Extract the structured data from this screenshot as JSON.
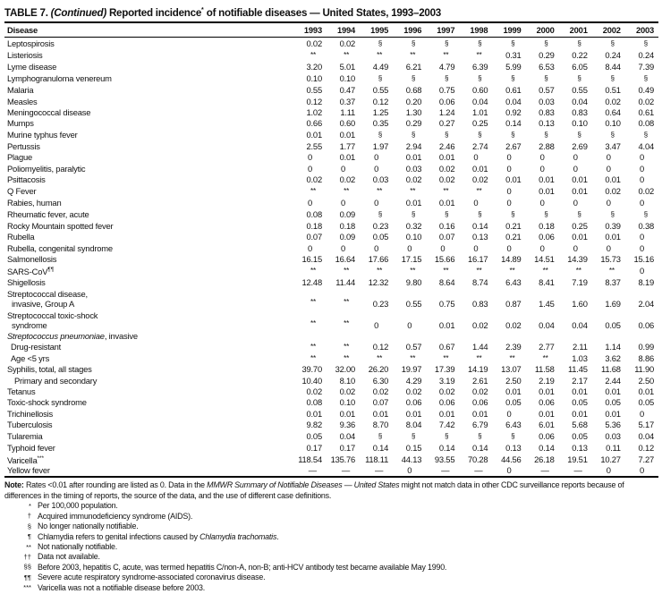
{
  "title": {
    "label": "TABLE 7.",
    "continued": "(Continued)",
    "text": "Reported incidence",
    "sup": "*",
    "text2": "of notifiable diseases — United States, 1993–2003"
  },
  "table": {
    "disease_header": "Disease",
    "years": [
      "1993",
      "1994",
      "1995",
      "1996",
      "1997",
      "1998",
      "1999",
      "2000",
      "2001",
      "2002",
      "2003"
    ],
    "rows": [
      {
        "label": "Leptospirosis",
        "values": [
          "0.02",
          "0.02",
          "§",
          "§",
          "§",
          "§",
          "§",
          "§",
          "§",
          "§",
          "§"
        ]
      },
      {
        "label": "Listeriosis",
        "values": [
          "**",
          "**",
          "**",
          "**",
          "**",
          "**",
          "0.31",
          "0.29",
          "0.22",
          "0.24",
          "0.24"
        ]
      },
      {
        "label": "Lyme disease",
        "values": [
          "3.20",
          "5.01",
          "4.49",
          "6.21",
          "4.79",
          "6.39",
          "5.99",
          "6.53",
          "6.05",
          "8.44",
          "7.39"
        ]
      },
      {
        "label": "Lymphogranuloma venereum",
        "values": [
          "0.10",
          "0.10",
          "§",
          "§",
          "§",
          "§",
          "§",
          "§",
          "§",
          "§",
          "§"
        ]
      },
      {
        "label": "Malaria",
        "values": [
          "0.55",
          "0.47",
          "0.55",
          "0.68",
          "0.75",
          "0.60",
          "0.61",
          "0.57",
          "0.55",
          "0.51",
          "0.49"
        ]
      },
      {
        "label": "Measles",
        "values": [
          "0.12",
          "0.37",
          "0.12",
          "0.20",
          "0.06",
          "0.04",
          "0.04",
          "0.03",
          "0.04",
          "0.02",
          "0.02"
        ]
      },
      {
        "label": "Meningococcal disease",
        "values": [
          "1.02",
          "1.11",
          "1.25",
          "1.30",
          "1.24",
          "1.01",
          "0.92",
          "0.83",
          "0.83",
          "0.64",
          "0.61"
        ]
      },
      {
        "label": "Mumps",
        "values": [
          "0.66",
          "0.60",
          "0.35",
          "0.29",
          "0.27",
          "0.25",
          "0.14",
          "0.13",
          "0.10",
          "0.10",
          "0.08"
        ]
      },
      {
        "label": "Murine typhus fever",
        "values": [
          "0.01",
          "0.01",
          "§",
          "§",
          "§",
          "§",
          "§",
          "§",
          "§",
          "§",
          "§"
        ]
      },
      {
        "label": "Pertussis",
        "values": [
          "2.55",
          "1.77",
          "1.97",
          "2.94",
          "2.46",
          "2.74",
          "2.67",
          "2.88",
          "2.69",
          "3.47",
          "4.04"
        ]
      },
      {
        "label": "Plague",
        "values": [
          "0",
          "0.01",
          "0",
          "0.01",
          "0.01",
          "0",
          "0",
          "0",
          "0",
          "0",
          "0"
        ]
      },
      {
        "label": "Poliomyelitis, paralytic",
        "values": [
          "0",
          "0",
          "0",
          "0.03",
          "0.02",
          "0.01",
          "0",
          "0",
          "0",
          "0",
          "0"
        ]
      },
      {
        "label": "Psittacosis",
        "values": [
          "0.02",
          "0.02",
          "0.03",
          "0.02",
          "0.02",
          "0.02",
          "0.01",
          "0.01",
          "0.01",
          "0.01",
          "0"
        ]
      },
      {
        "label": "Q Fever",
        "values": [
          "**",
          "**",
          "**",
          "**",
          "**",
          "**",
          "0",
          "0.01",
          "0.01",
          "0.02",
          "0.02"
        ]
      },
      {
        "label": "Rabies, human",
        "values": [
          "0",
          "0",
          "0",
          "0.01",
          "0.01",
          "0",
          "0",
          "0",
          "0",
          "0",
          "0"
        ]
      },
      {
        "label": "Rheumatic fever, acute",
        "values": [
          "0.08",
          "0.09",
          "§",
          "§",
          "§",
          "§",
          "§",
          "§",
          "§",
          "§",
          "§"
        ]
      },
      {
        "label": "Rocky Mountain spotted fever",
        "values": [
          "0.18",
          "0.18",
          "0.23",
          "0.32",
          "0.16",
          "0.14",
          "0.21",
          "0.18",
          "0.25",
          "0.39",
          "0.38"
        ]
      },
      {
        "label": "Rubella",
        "values": [
          "0.07",
          "0.09",
          "0.05",
          "0.10",
          "0.07",
          "0.13",
          "0.21",
          "0.06",
          "0.01",
          "0.01",
          "0"
        ]
      },
      {
        "label": "Rubella, congenital syndrome",
        "values": [
          "0",
          "0",
          "0",
          "0",
          "0",
          "0",
          "0",
          "0",
          "0",
          "0",
          "0"
        ]
      },
      {
        "label": "Salmonellosis",
        "values": [
          "16.15",
          "16.64",
          "17.66",
          "17.15",
          "15.66",
          "16.17",
          "14.89",
          "14.51",
          "14.39",
          "15.73",
          "15.16"
        ]
      },
      {
        "label": "SARS-CoV",
        "sup": "¶¶",
        "values": [
          "**",
          "**",
          "**",
          "**",
          "**",
          "**",
          "**",
          "**",
          "**",
          "**",
          "0"
        ]
      },
      {
        "label": "Shigellosis",
        "values": [
          "12.48",
          "11.44",
          "12.32",
          "9.80",
          "8.64",
          "8.74",
          "6.43",
          "8.41",
          "7.19",
          "8.37",
          "8.19"
        ]
      },
      {
        "label": "Streptococcal disease,",
        "label2": "invasive, Group A",
        "values": [
          "**",
          "**",
          "0.23",
          "0.55",
          "0.75",
          "0.83",
          "0.87",
          "1.45",
          "1.60",
          "1.69",
          "2.04"
        ]
      },
      {
        "label": "Streptococcal toxic-shock",
        "label2": "syndrome",
        "values": [
          "**",
          "**",
          "0",
          "0",
          "0.01",
          "0.02",
          "0.02",
          "0.04",
          "0.04",
          "0.05",
          "0.06"
        ]
      },
      {
        "label_italic": "Streptococcus pneumoniae",
        "label": ", invasive",
        "group": true,
        "values": []
      },
      {
        "label": "Drug-resistant",
        "indent": 1,
        "sub": true,
        "values": [
          "**",
          "**",
          "0.12",
          "0.57",
          "0.67",
          "1.44",
          "2.39",
          "2.77",
          "2.11",
          "1.14",
          "0.99"
        ]
      },
      {
        "label": "Age <5 yrs",
        "indent": 1,
        "sub": true,
        "values": [
          "**",
          "**",
          "**",
          "**",
          "**",
          "**",
          "**",
          "**",
          "1.03",
          "3.62",
          "8.86"
        ]
      },
      {
        "label": "Syphilis, total, all stages",
        "values": [
          "39.70",
          "32.00",
          "26.20",
          "19.97",
          "17.39",
          "14.19",
          "13.07",
          "11.58",
          "11.45",
          "11.68",
          "11.90"
        ]
      },
      {
        "label": "Primary and secondary",
        "indent": 2,
        "values": [
          "10.40",
          "8.10",
          "6.30",
          "4.29",
          "3.19",
          "2.61",
          "2.50",
          "2.19",
          "2.17",
          "2.44",
          "2.50"
        ]
      },
      {
        "label": "Tetanus",
        "values": [
          "0.02",
          "0.02",
          "0.02",
          "0.02",
          "0.02",
          "0.02",
          "0.01",
          "0.01",
          "0.01",
          "0.01",
          "0.01"
        ]
      },
      {
        "label": "Toxic-shock syndrome",
        "values": [
          "0.08",
          "0.10",
          "0.07",
          "0.06",
          "0.06",
          "0.06",
          "0.05",
          "0.06",
          "0.05",
          "0.05",
          "0.05"
        ]
      },
      {
        "label": "Trichinellosis",
        "values": [
          "0.01",
          "0.01",
          "0.01",
          "0.01",
          "0.01",
          "0.01",
          "0",
          "0.01",
          "0.01",
          "0.01",
          "0"
        ]
      },
      {
        "label": "Tuberculosis",
        "values": [
          "9.82",
          "9.36",
          "8.70",
          "8.04",
          "7.42",
          "6.79",
          "6.43",
          "6.01",
          "5.68",
          "5.36",
          "5.17"
        ]
      },
      {
        "label": "Tularemia",
        "values": [
          "0.05",
          "0.04",
          "§",
          "§",
          "§",
          "§",
          "§",
          "0.06",
          "0.05",
          "0.03",
          "0.04"
        ]
      },
      {
        "label": "Typhoid fever",
        "values": [
          "0.17",
          "0.17",
          "0.14",
          "0.15",
          "0.14",
          "0.14",
          "0.13",
          "0.14",
          "0.13",
          "0.11",
          "0.12"
        ]
      },
      {
        "label": "Varicella",
        "sup": "***",
        "values": [
          "118.54",
          "135.76",
          "118.11",
          "44.13",
          "93.55",
          "70.28",
          "44.56",
          "26.18",
          "19.51",
          "10.27",
          "7.27"
        ]
      },
      {
        "label": "Yellow fever",
        "values": [
          "—",
          "—",
          "—",
          "0",
          "—",
          "—",
          "0",
          "—",
          "—",
          "0",
          "0"
        ]
      }
    ]
  },
  "footnotes": {
    "note_segments": [
      {
        "t": "Note:",
        "b": true
      },
      {
        "t": " Rates <0.01 after rounding are listed as 0. Data in the "
      },
      {
        "t": "MMWR Summary of Notifiable Diseases — United States",
        "i": true
      },
      {
        "t": " might not match data in other CDC surveillance reports because of differences in the timing of reports, the source of the data, and the use of different case definitions."
      }
    ],
    "items": [
      {
        "symbol": "*",
        "segments": [
          {
            "t": "Per 100,000 population."
          }
        ]
      },
      {
        "symbol": "†",
        "segments": [
          {
            "t": "Acquired immunodeficiency syndrome (AIDS)."
          }
        ]
      },
      {
        "symbol": "§",
        "segments": [
          {
            "t": "No longer nationally notifiable."
          }
        ]
      },
      {
        "symbol": "¶",
        "segments": [
          {
            "t": "Chlamydia refers to genital infections caused by "
          },
          {
            "t": "Chlamydia trachomatis",
            "i": true
          },
          {
            "t": "."
          }
        ]
      },
      {
        "symbol": "**",
        "segments": [
          {
            "t": "Not nationally notifiable."
          }
        ]
      },
      {
        "symbol": "††",
        "segments": [
          {
            "t": "Data not available."
          }
        ]
      },
      {
        "symbol": "§§",
        "segments": [
          {
            "t": "Before 2003, hepatitis C, acute, was termed hepatitis C/non-A, non-B; anti-HCV antibody test became available May 1990."
          }
        ]
      },
      {
        "symbol": "¶¶",
        "segments": [
          {
            "t": "Severe acute respiratory syndrome-associated coronavirus disease."
          }
        ]
      },
      {
        "symbol": "***",
        "segments": [
          {
            "t": "Varicella was not a notifiable disease before 2003."
          }
        ]
      }
    ]
  }
}
